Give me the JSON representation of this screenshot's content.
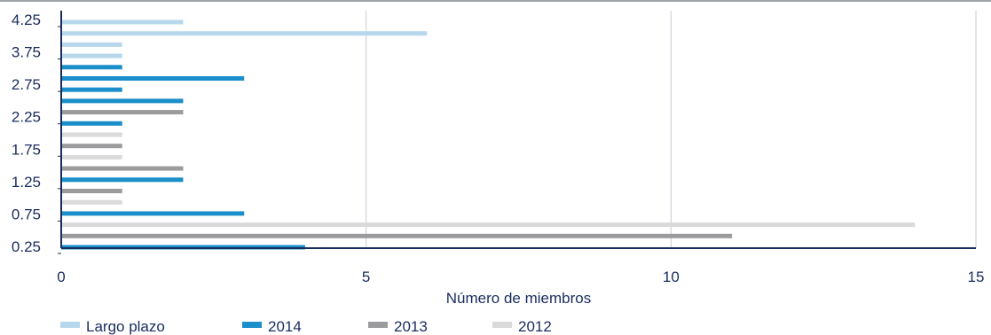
{
  "chart_data": {
    "type": "bar",
    "orientation": "horizontal",
    "title": "",
    "xlabel": "Número de miembros",
    "ylabel": "",
    "xlim": [
      0,
      15
    ],
    "x_ticks": [
      "0",
      "5",
      "10",
      "15"
    ],
    "y_ticks": [
      "0.25",
      "0.75",
      "1.25",
      "1.75",
      "2.25",
      "2.75",
      "3.75",
      "4.25"
    ],
    "grid": "vertical",
    "legend_position": "bottom",
    "colors": {
      "Largo plazo": "#b7d8ec",
      "2014": "#1b8fc9",
      "2013": "#9b9b9e",
      "2012": "#dadada",
      "axis": "#1a2c5e",
      "grid": "#c8cbd6"
    },
    "series": [
      {
        "name": "Largo plazo",
        "bars": [
          2,
          6,
          1,
          1
        ]
      },
      {
        "name": "2014",
        "bars": [
          4,
          3,
          2,
          1,
          2,
          1,
          3,
          1
        ]
      },
      {
        "name": "2013",
        "bars": [
          11,
          1,
          2,
          1,
          2
        ]
      },
      {
        "name": "2012",
        "bars": [
          14,
          1,
          1,
          1
        ]
      }
    ],
    "bars_top_to_bottom": [
      {
        "series": "Largo plazo",
        "value": 2
      },
      {
        "series": "Largo plazo",
        "value": 6
      },
      {
        "series": "Largo plazo",
        "value": 1
      },
      {
        "series": "Largo plazo",
        "value": 1
      },
      {
        "series": "2014",
        "value": 1
      },
      {
        "series": "2014",
        "value": 3
      },
      {
        "series": "2014",
        "value": 1
      },
      {
        "series": "2014",
        "value": 2
      },
      {
        "series": "2013",
        "value": 2
      },
      {
        "series": "2014",
        "value": 1
      },
      {
        "series": "2012",
        "value": 1
      },
      {
        "series": "2013",
        "value": 1
      },
      {
        "series": "2012",
        "value": 1
      },
      {
        "series": "2013",
        "value": 2
      },
      {
        "series": "2014",
        "value": 2
      },
      {
        "series": "2013",
        "value": 1
      },
      {
        "series": "2012",
        "value": 1
      },
      {
        "series": "2014",
        "value": 3
      },
      {
        "series": "2012",
        "value": 14
      },
      {
        "series": "2013",
        "value": 11
      },
      {
        "series": "2014",
        "value": 4
      }
    ]
  }
}
